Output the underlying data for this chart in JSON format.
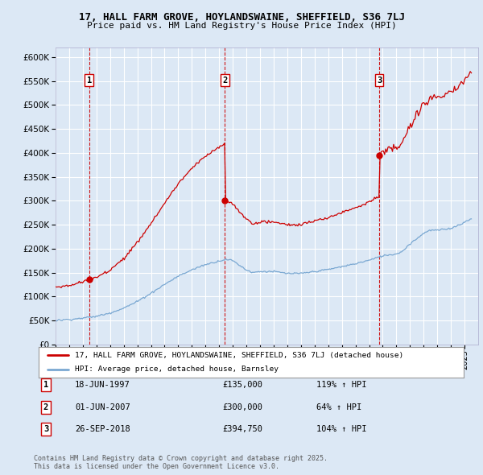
{
  "title": "17, HALL FARM GROVE, HOYLANDSWAINE, SHEFFIELD, S36 7LJ",
  "subtitle": "Price paid vs. HM Land Registry's House Price Index (HPI)",
  "background_color": "#dce8f5",
  "plot_bg_color": "#dce8f5",
  "grid_color": "#ffffff",
  "sale_dates": [
    "18-JUN-1997",
    "01-JUN-2007",
    "26-SEP-2018"
  ],
  "sale_prices": [
    135000,
    300000,
    394750
  ],
  "sale_times": [
    1997.46,
    2007.42,
    2018.74
  ],
  "sale_labels": [
    "1",
    "2",
    "3"
  ],
  "sale_pct": [
    "119% ↑ HPI",
    "64% ↑ HPI",
    "104% ↑ HPI"
  ],
  "ylim": [
    0,
    620000
  ],
  "yticks": [
    0,
    50000,
    100000,
    150000,
    200000,
    250000,
    300000,
    350000,
    400000,
    450000,
    500000,
    550000,
    600000
  ],
  "ytick_labels": [
    "£0",
    "£50K",
    "£100K",
    "£150K",
    "£200K",
    "£250K",
    "£300K",
    "£350K",
    "£400K",
    "£450K",
    "£500K",
    "£550K",
    "£600K"
  ],
  "red_line_color": "#cc0000",
  "blue_line_color": "#7aa8d2",
  "sale_dot_color": "#cc0000",
  "legend_label_red": "17, HALL FARM GROVE, HOYLANDSWAINE, SHEFFIELD, S36 7LJ (detached house)",
  "legend_label_blue": "HPI: Average price, detached house, Barnsley",
  "footer": "Contains HM Land Registry data © Crown copyright and database right 2025.\nThis data is licensed under the Open Government Licence v3.0.",
  "xlim_start": 1995.0,
  "xlim_end": 2026.0
}
